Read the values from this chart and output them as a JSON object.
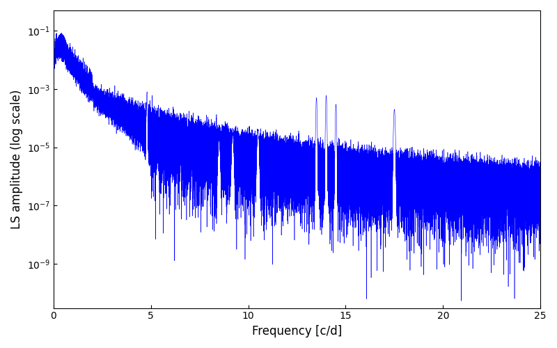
{
  "xlabel": "Frequency [c/d]",
  "ylabel": "LS amplitude (log scale)",
  "xlim": [
    0,
    25
  ],
  "ylim": [
    3e-11,
    0.5
  ],
  "line_color": "#0000ff",
  "line_width": 0.4,
  "figsize": [
    8.0,
    5.0
  ],
  "dpi": 100,
  "n_points": 50000,
  "seed": 12345,
  "background_color": "#ffffff",
  "yticks": [
    1e-09,
    1e-07,
    1e-05,
    0.001,
    0.1
  ],
  "xticks": [
    0,
    5,
    10,
    15,
    20,
    25
  ]
}
